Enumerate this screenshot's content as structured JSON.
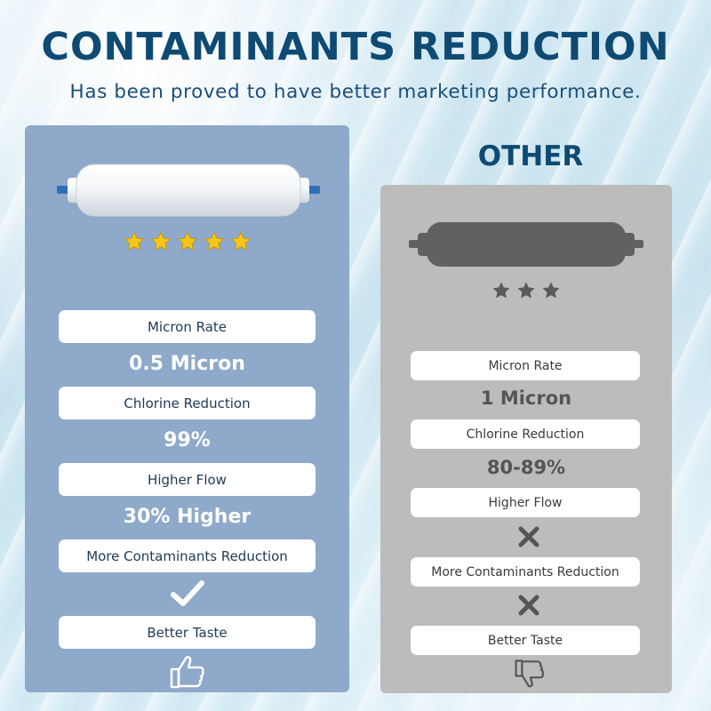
{
  "header": {
    "title": "CONTAMINANTS REDUCTION",
    "subtitle": "Has been proved to have better marketing performance."
  },
  "ours": {
    "rating_stars": 5,
    "star_color": "#f5c518",
    "rows": [
      {
        "label": "Micron Rate",
        "value": "0.5 Micron"
      },
      {
        "label": "Chlorine Reduction",
        "value": "99%"
      },
      {
        "label": "Higher Flow",
        "value": "30% Higher"
      },
      {
        "label": "More Contaminants Reduction",
        "value_icon": "check-icon"
      },
      {
        "label": "Better Taste",
        "value_icon": "thumbs-up-icon"
      }
    ]
  },
  "other": {
    "title": "OTHER",
    "rating_stars": 3,
    "star_color": "#5a5a5a",
    "rows": [
      {
        "label": "Micron Rate",
        "value": "1 Micron"
      },
      {
        "label": "Chlorine Reduction",
        "value": "80-89%"
      },
      {
        "label": "Higher Flow",
        "value_icon": "cross-icon"
      },
      {
        "label": "More Contaminants Reduction",
        "value_icon": "cross-icon"
      },
      {
        "label": "Better Taste",
        "value_icon": "thumbs-down-icon"
      }
    ]
  },
  "colors": {
    "title": "#0f4a73",
    "ours_panel": "#8ea9c9",
    "other_panel": "#bcbcbd"
  }
}
